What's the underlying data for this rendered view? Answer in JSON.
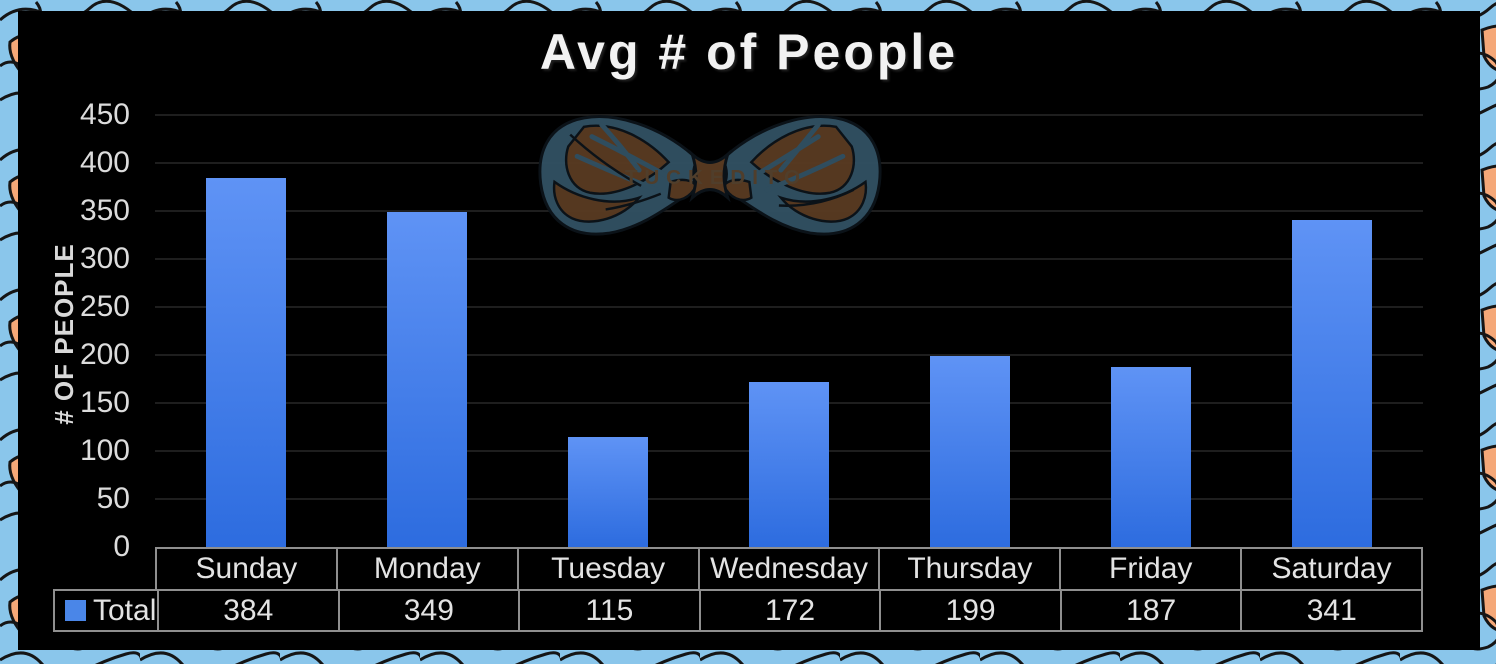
{
  "title": "Avg # of People",
  "watermark": {
    "text": "TUCKEDITO"
  },
  "y_axis": {
    "label": "# OF PEOPLE",
    "ticks": [
      450,
      400,
      350,
      300,
      250,
      200,
      150,
      100,
      50,
      0
    ]
  },
  "legend": {
    "label": "Total"
  },
  "chart_data": {
    "type": "bar",
    "title": "Avg # of People",
    "xlabel": "",
    "ylabel": "# OF PEOPLE",
    "ylim": [
      0,
      450
    ],
    "grid": true,
    "legend_position": "bottom-table",
    "categories": [
      "Sunday",
      "Monday",
      "Tuesday",
      "Wednesday",
      "Thursday",
      "Friday",
      "Saturday"
    ],
    "series": [
      {
        "name": "Total",
        "values": [
          384,
          349,
          115,
          172,
          199,
          187,
          341
        ]
      }
    ]
  },
  "colors": {
    "bar_top": "#5f93f5",
    "bar_bottom": "#2d6cdf",
    "legend_swatch": "#4a86e8",
    "gridline": "#1e1e1e",
    "panel_background": "#000000",
    "pattern_blue": "#8ac6eb",
    "pattern_orange": "#f5a878",
    "axis_text": "#dcdcdc",
    "bowtie_brown": "#583a22",
    "bowtie_slate": "#315062"
  }
}
